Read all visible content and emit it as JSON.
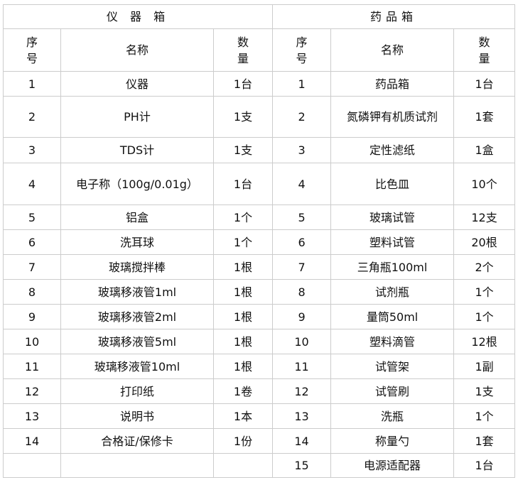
{
  "left": {
    "title": "仪 器 箱",
    "headers": {
      "seq": "序号",
      "name": "名称",
      "qty": "数量"
    },
    "items": [
      {
        "seq": "1",
        "name": "仪器",
        "qty": "1台"
      },
      {
        "seq": "2",
        "name": "PH计",
        "qty": "1支"
      },
      {
        "seq": "3",
        "name": "TDS计",
        "qty": "1支"
      },
      {
        "seq": "4",
        "name": "电子称（100g/0.01g）",
        "qty": "1台"
      },
      {
        "seq": "5",
        "name": "铝盒",
        "qty": "1个"
      },
      {
        "seq": "6",
        "name": "洗耳球",
        "qty": "1个"
      },
      {
        "seq": "7",
        "name": "玻璃搅拌棒",
        "qty": "1根"
      },
      {
        "seq": "8",
        "name": "玻璃移液管1ml",
        "qty": "1根"
      },
      {
        "seq": "9",
        "name": "玻璃移液管2ml",
        "qty": "1根"
      },
      {
        "seq": "10",
        "name": "玻璃移液管5ml",
        "qty": "1根"
      },
      {
        "seq": "11",
        "name": "玻璃移液管10ml",
        "qty": "1根"
      },
      {
        "seq": "12",
        "name": "打印纸",
        "qty": "1卷"
      },
      {
        "seq": "13",
        "name": "说明书",
        "qty": "1本"
      },
      {
        "seq": "14",
        "name": "合格证/保修卡",
        "qty": "1份"
      },
      {
        "seq": "",
        "name": "",
        "qty": ""
      }
    ]
  },
  "right": {
    "title": "药品箱",
    "headers": {
      "seq": "序号",
      "name": "名称",
      "qty": "数量"
    },
    "items": [
      {
        "seq": "1",
        "name": "药品箱",
        "qty": "1台"
      },
      {
        "seq": "2",
        "name": "氮磷钾有机质试剂",
        "qty": "1套"
      },
      {
        "seq": "3",
        "name": "定性滤纸",
        "qty": "1盒"
      },
      {
        "seq": "4",
        "name": "比色皿",
        "qty": "10个"
      },
      {
        "seq": "5",
        "name": "玻璃试管",
        "qty": "12支"
      },
      {
        "seq": "6",
        "name": "塑料试管",
        "qty": "20根"
      },
      {
        "seq": "7",
        "name": "三角瓶100ml",
        "qty": "2个"
      },
      {
        "seq": "8",
        "name": "试剂瓶",
        "qty": "1个"
      },
      {
        "seq": "9",
        "name": "量筒50ml",
        "qty": "1个"
      },
      {
        "seq": "10",
        "name": "塑料滴管",
        "qty": "12根"
      },
      {
        "seq": "11",
        "name": "试管架",
        "qty": "1副"
      },
      {
        "seq": "12",
        "name": "试管刷",
        "qty": "1支"
      },
      {
        "seq": "13",
        "name": "洗瓶",
        "qty": "1个"
      },
      {
        "seq": "14",
        "name": "称量勺",
        "qty": "1套"
      },
      {
        "seq": "15",
        "name": "电源适配器",
        "qty": "1台"
      }
    ]
  }
}
